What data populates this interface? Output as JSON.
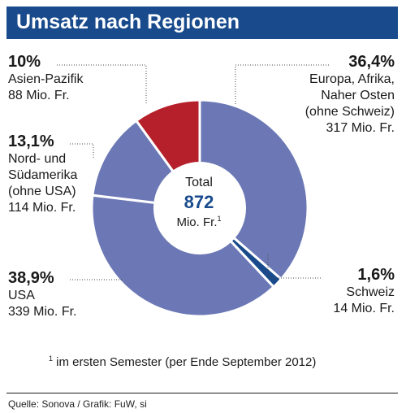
{
  "chart_data": {
    "type": "pie",
    "title": "Umsatz nach Regionen",
    "center": {
      "label": "Total",
      "value": "872",
      "unit": "Mio. Fr.",
      "footnote_mark": "1"
    },
    "slices": [
      {
        "name": "Europa, Afrika, Naher Osten (ohne Schweiz)",
        "percent": 36.4,
        "value": 317,
        "pct_label": "36,4%",
        "lines": [
          "Europa, Afrika,",
          "Naher Osten",
          "(ohne Schweiz)",
          "317 Mio. Fr."
        ],
        "color": "#6b78b5"
      },
      {
        "name": "Schweiz",
        "percent": 1.6,
        "value": 14,
        "pct_label": "1,6%",
        "lines": [
          "Schweiz",
          "14 Mio. Fr."
        ],
        "color": "#184a8c"
      },
      {
        "name": "USA",
        "percent": 38.9,
        "value": 339,
        "pct_label": "38,9%",
        "lines": [
          "USA",
          "339 Mio. Fr."
        ],
        "color": "#6b78b5"
      },
      {
        "name": "Nord- und Südamerika (ohne USA)",
        "percent": 13.1,
        "value": 114,
        "pct_label": "13,1%",
        "lines": [
          "Nord- und",
          "Südamerika",
          "(ohne USA)",
          "114 Mio. Fr."
        ],
        "color": "#6b78b5"
      },
      {
        "name": "Asien-Pazifik",
        "percent": 10,
        "value": 88,
        "pct_label": "10%",
        "lines": [
          "Asien-Pazifik",
          "88 Mio. Fr."
        ],
        "color": "#b5202a"
      }
    ],
    "slice_border_color": "#ffffff",
    "leader_color": "#444444"
  },
  "footnote": {
    "mark": "1",
    "text": " im ersten Semester (per Ende September 2012)"
  },
  "source": "Quelle: Sonova / Grafik: FuW, si",
  "colors": {
    "title_bar": "#184a8c",
    "accent_value": "#184a8c"
  }
}
